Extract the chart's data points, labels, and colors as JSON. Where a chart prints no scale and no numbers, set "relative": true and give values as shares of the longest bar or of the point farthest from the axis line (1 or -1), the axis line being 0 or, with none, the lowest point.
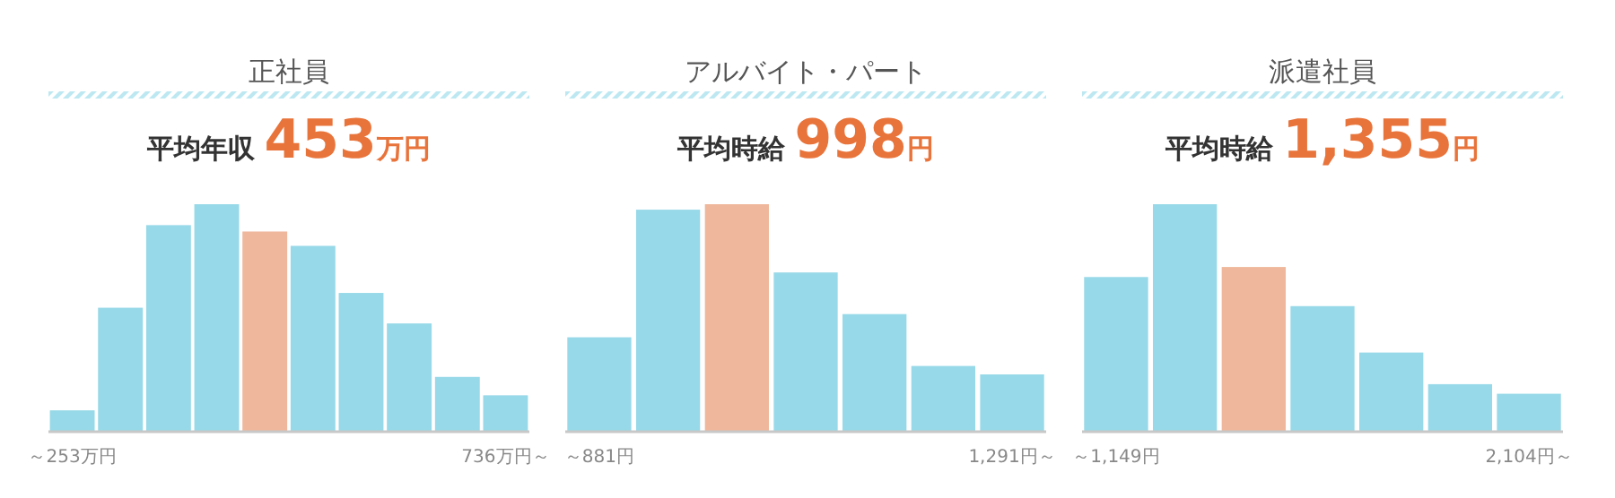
{
  "chart_data": [
    {
      "type": "bar",
      "title": "正社員",
      "subtitle": "平均年収 453万円",
      "relative": true,
      "categories": [
        "～253万円",
        null,
        null,
        null,
        null,
        null,
        null,
        null,
        null,
        "736万円～"
      ],
      "values": [
        0.094,
        0.545,
        0.908,
        1,
        0.88,
        0.817,
        0.61,
        0.476,
        0.241,
        0.16
      ],
      "colors": [
        "#97d9e8",
        "#97d9e8",
        "#97d9e8",
        "#97d9e8",
        "#efb79b",
        "#97d9e8",
        "#97d9e8",
        "#97d9e8",
        "#97d9e8",
        "#97d9e8"
      ]
    },
    {
      "type": "bar",
      "title": "アルバイト・パート",
      "subtitle": "平均時給 998円",
      "relative": true,
      "categories": [
        "～881円",
        null,
        null,
        null,
        null,
        null,
        "1,291円～"
      ],
      "values": [
        0.415,
        0.976,
        1,
        0.7,
        0.517,
        0.289,
        0.252
      ],
      "colors": [
        "#97d9e8",
        "#97d9e8",
        "#efb79b",
        "#97d9e8",
        "#97d9e8",
        "#97d9e8",
        "#97d9e8"
      ]
    },
    {
      "type": "bar",
      "title": "派遣社員",
      "subtitle": "平均時給 1,355円",
      "relative": true,
      "categories": [
        "～1,149円",
        null,
        null,
        null,
        null,
        null,
        "2,104円～"
      ],
      "values": [
        0.68,
        1,
        0.724,
        0.552,
        0.348,
        0.209,
        0.167
      ],
      "colors": [
        "#97d9e8",
        "#97d9e8",
        "#efb79b",
        "#97d9e8",
        "#97d9e8",
        "#97d9e8",
        "#97d9e8"
      ]
    }
  ]
}
